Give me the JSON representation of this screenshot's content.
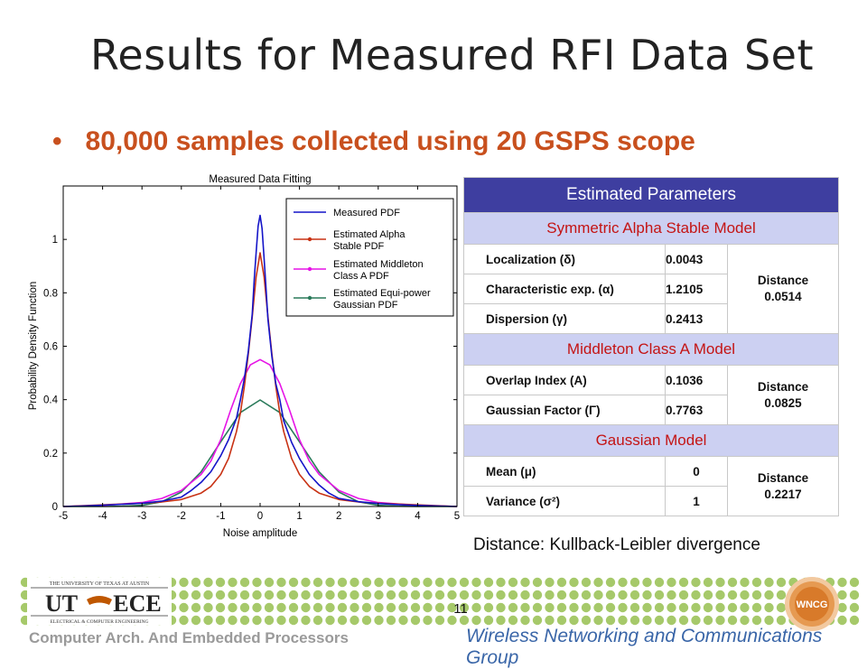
{
  "slide": {
    "title": "Results for Measured RFI Data Set",
    "bullet": "80,000 samples collected using 20 GSPS scope",
    "note": "Distance: Kullback-Leibler divergence",
    "page_number": "11",
    "footer_left": "Computer Arch. And Embedded Processors",
    "footer_right": "Wireless Networking and Communications Group",
    "ut_logo": {
      "top": "THE UNIVERSITY OF TEXAS AT AUSTIN",
      "left": "UT",
      "right": "ECE",
      "bottom": "ELECTRICAL & COMPUTER ENGINEERING"
    },
    "wncc_logo": "WNCG"
  },
  "table": {
    "header": "Estimated Parameters",
    "sections": [
      {
        "title": "Symmetric Alpha Stable Model",
        "rows": [
          {
            "name": "Localization (δ)",
            "value": "0.0043"
          },
          {
            "name": "Characteristic exp. (α)",
            "value": "1.2105"
          },
          {
            "name": "Dispersion (γ)",
            "value": "0.2413"
          }
        ],
        "distance_label": "Distance",
        "distance_value": "0.0514"
      },
      {
        "title": "Middleton Class A Model",
        "rows": [
          {
            "name": "Overlap Index (A)",
            "value": "0.1036"
          },
          {
            "name": "Gaussian Factor (Γ)",
            "value": "0.7763"
          }
        ],
        "distance_label": "Distance",
        "distance_value": "0.0825"
      },
      {
        "title": "Gaussian Model",
        "rows": [
          {
            "name": "Mean (μ)",
            "value": "0"
          },
          {
            "name": "Variance (σ²)",
            "value": "1"
          }
        ],
        "distance_label": "Distance",
        "distance_value": "0.2217"
      }
    ]
  },
  "chart_data": {
    "type": "line",
    "title": "Measured Data Fitting",
    "xlabel": "Noise amplitude",
    "ylabel": "Probability Density Function",
    "xlim": [
      -5,
      5
    ],
    "ylim": [
      0,
      1.2
    ],
    "xticks": [
      -5,
      -4,
      -3,
      -2,
      -1,
      0,
      1,
      2,
      3,
      4,
      5
    ],
    "yticks": [
      0,
      0.2,
      0.4,
      0.6,
      0.8,
      1
    ],
    "legend_position": "top-right",
    "grid": false,
    "series": [
      {
        "name": "Measured PDF",
        "color": "#1414c8",
        "marker": "none",
        "x": [
          -5,
          -4.5,
          -4,
          -3.5,
          -3,
          -2.5,
          -2,
          -1.75,
          -1.5,
          -1.25,
          -1,
          -0.8,
          -0.6,
          -0.5,
          -0.4,
          -0.3,
          -0.2,
          -0.15,
          -0.1,
          -0.05,
          0,
          0.05,
          0.1,
          0.15,
          0.2,
          0.3,
          0.4,
          0.5,
          0.6,
          0.8,
          1,
          1.25,
          1.5,
          1.75,
          2,
          2.5,
          3,
          3.5,
          4,
          4.5,
          5
        ],
        "y": [
          0,
          0.002,
          0.005,
          0.008,
          0.012,
          0.02,
          0.035,
          0.06,
          0.09,
          0.13,
          0.19,
          0.25,
          0.33,
          0.4,
          0.48,
          0.58,
          0.72,
          0.85,
          0.95,
          1.05,
          1.09,
          1.04,
          0.93,
          0.82,
          0.7,
          0.56,
          0.46,
          0.4,
          0.32,
          0.24,
          0.18,
          0.12,
          0.08,
          0.05,
          0.03,
          0.018,
          0.011,
          0.007,
          0.004,
          0.002,
          0
        ]
      },
      {
        "name": "Estimated Alpha Stable PDF",
        "color": "#c83214",
        "marker": "dot",
        "x": [
          -5,
          -4,
          -3,
          -2.5,
          -2,
          -1.5,
          -1.25,
          -1,
          -0.8,
          -0.6,
          -0.5,
          -0.4,
          -0.3,
          -0.2,
          -0.1,
          0,
          0.1,
          0.2,
          0.3,
          0.4,
          0.5,
          0.6,
          0.8,
          1,
          1.25,
          1.5,
          2,
          2.5,
          3,
          4,
          5
        ],
        "y": [
          0,
          0.006,
          0.012,
          0.017,
          0.026,
          0.05,
          0.075,
          0.12,
          0.18,
          0.28,
          0.35,
          0.45,
          0.57,
          0.71,
          0.86,
          0.95,
          0.86,
          0.71,
          0.57,
          0.45,
          0.35,
          0.28,
          0.18,
          0.12,
          0.075,
          0.05,
          0.026,
          0.017,
          0.012,
          0.006,
          0
        ]
      },
      {
        "name": "Estimated Middleton Class A PDF",
        "color": "#e614e6",
        "marker": "dot",
        "x": [
          -5,
          -4,
          -3,
          -2.5,
          -2,
          -1.5,
          -1.25,
          -1,
          -0.75,
          -0.5,
          -0.25,
          0,
          0.25,
          0.5,
          0.75,
          1,
          1.25,
          1.5,
          2,
          2.5,
          3,
          4,
          5
        ],
        "y": [
          0,
          0.004,
          0.015,
          0.03,
          0.06,
          0.12,
          0.17,
          0.25,
          0.36,
          0.46,
          0.53,
          0.55,
          0.53,
          0.46,
          0.36,
          0.25,
          0.17,
          0.12,
          0.06,
          0.03,
          0.015,
          0.004,
          0
        ]
      },
      {
        "name": "Estimated Equi-power Gaussian PDF",
        "color": "#2a7a5a",
        "marker": "dot",
        "x": [
          -5,
          -4.5,
          -4,
          -3.5,
          -3,
          -2.5,
          -2,
          -1.5,
          -1,
          -0.5,
          0,
          0.5,
          1,
          1.5,
          2,
          2.5,
          3,
          3.5,
          4,
          4.5,
          5
        ],
        "y": [
          0,
          0.0001,
          0.0001,
          0.0009,
          0.0044,
          0.0175,
          0.054,
          0.1295,
          0.242,
          0.352,
          0.399,
          0.352,
          0.242,
          0.1295,
          0.054,
          0.0175,
          0.0044,
          0.0009,
          0.0001,
          0.0001,
          0
        ]
      }
    ],
    "legend_entries": [
      "Measured PDF",
      "Estimated Alpha Stable PDF",
      "Estimated Middleton Class A PDF",
      "Estimated Equi-power Gaussian PDF"
    ],
    "legend_lines": [
      [
        "Measured PDF"
      ],
      [
        "Estimated Alpha",
        "Stable PDF"
      ],
      [
        "Estimated Middleton",
        "Class A PDF"
      ],
      [
        "Estimated Equi-power",
        "Gaussian PDF"
      ]
    ]
  }
}
